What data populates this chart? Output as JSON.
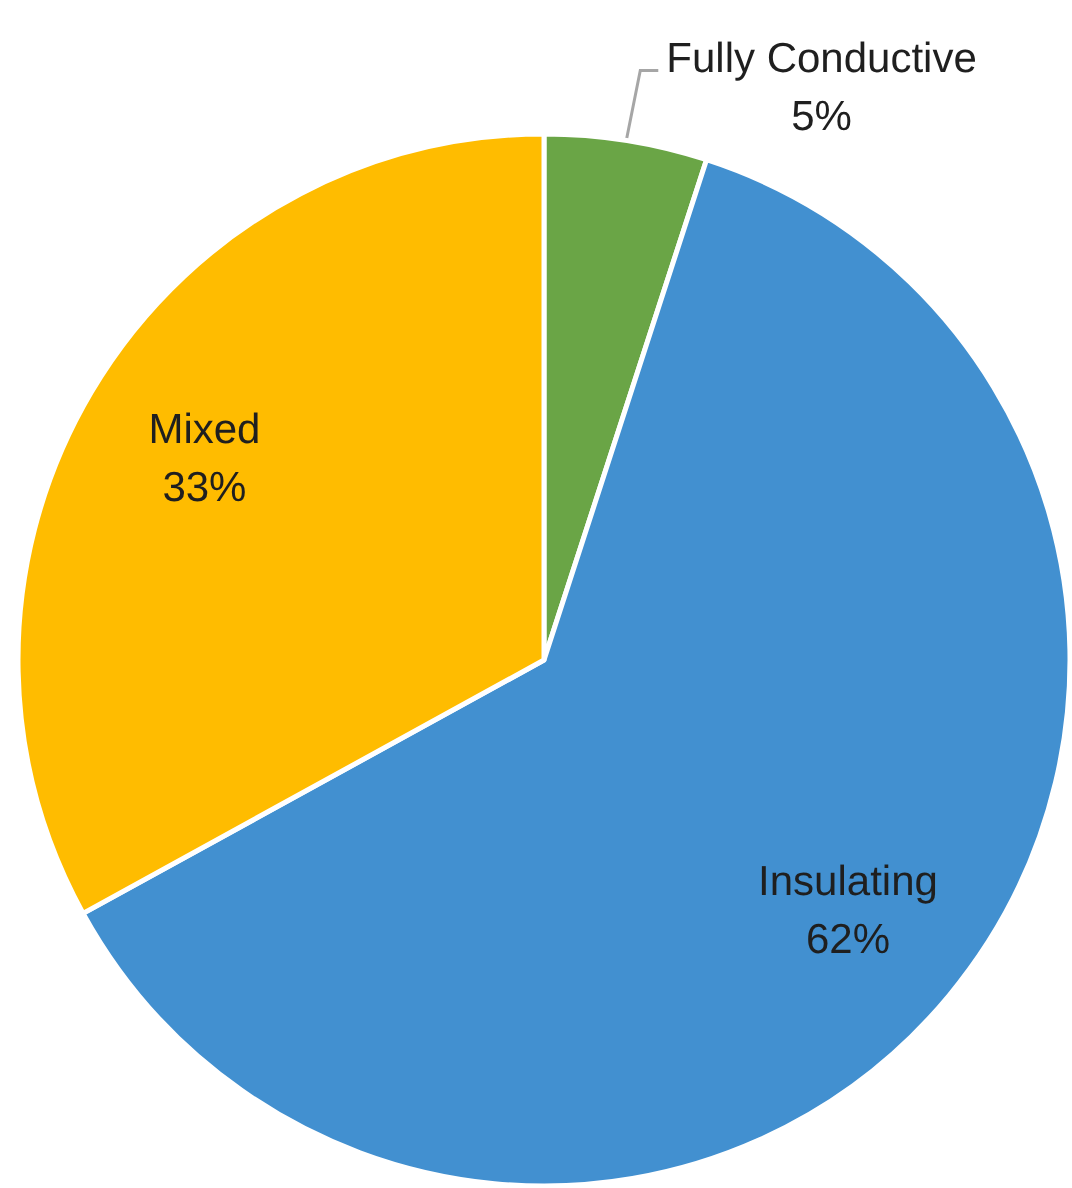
{
  "chart_data": {
    "type": "pie",
    "categories": [
      "Fully Conductive",
      "Insulating",
      "Mixed"
    ],
    "values": [
      5,
      62,
      33
    ],
    "colors": [
      "#6aa546",
      "#4290d0",
      "#ffbc00"
    ],
    "value_labels": [
      "5%",
      "62%",
      "33%"
    ]
  }
}
